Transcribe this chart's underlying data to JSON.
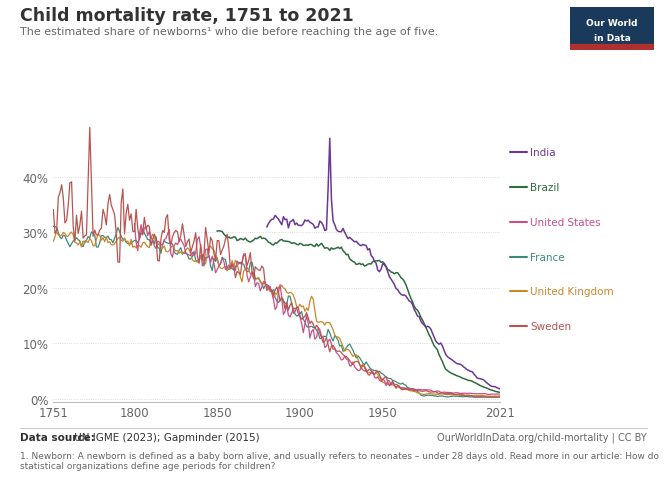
{
  "title": "Child mortality rate, 1751 to 2021",
  "subtitle": "The estimated share of newborns¹ who die before reaching the age of five.",
  "yticks": [
    0,
    0.1,
    0.2,
    0.3,
    0.4
  ],
  "ytick_labels": [
    "0%",
    "10%",
    "20%",
    "30%",
    "40%"
  ],
  "xlim": [
    1751,
    2021
  ],
  "ylim": [
    -0.005,
    0.52
  ],
  "background_color": "#ffffff",
  "grid_color": "#d0d0d0",
  "colors": {
    "Sweden": "#b85450",
    "France": "#3d8a7a",
    "United Kingdom": "#c8882a",
    "United States": "#c94f8a",
    "Brazil": "#2e6b3e",
    "India": "#6b3896"
  },
  "footnote": "1. Newborn: A newborn is defined as a baby born alive, and usually refers to neonates – under 28 days old. Read more in our article: How do\nstatistical organizations define age periods for children?",
  "source_bold": "Data source:",
  "source_rest": " UN IGME (2023); Gapminder (2015)",
  "url": "OurWorldInData.org/child-mortality | CC BY"
}
